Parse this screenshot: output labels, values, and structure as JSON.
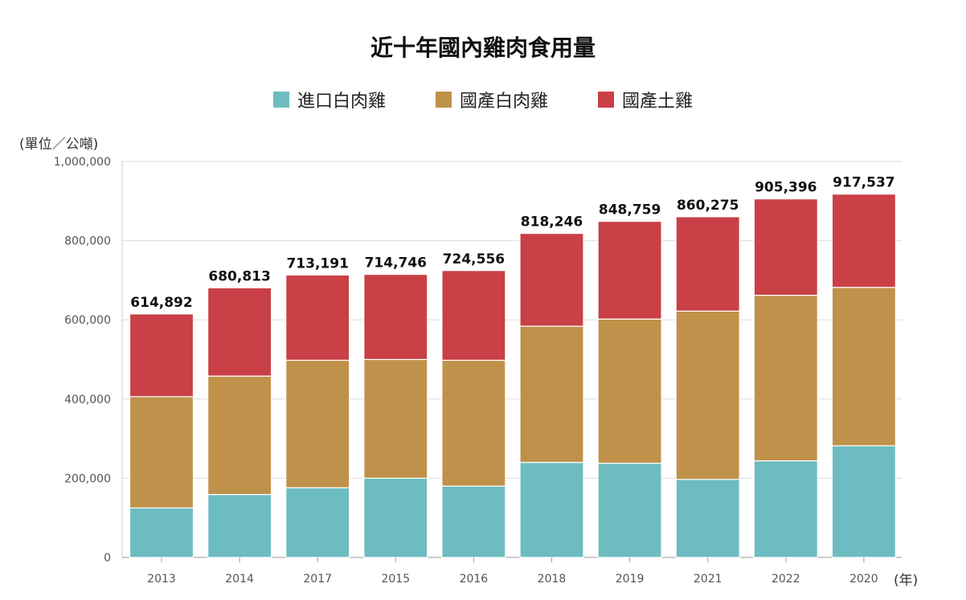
{
  "chart_data": {
    "type": "bar",
    "stacked": true,
    "title": "近十年國內雞肉食用量",
    "ylabel": "(單位／公噸)",
    "xlabel": "(年)",
    "ylim": [
      0,
      1000000
    ],
    "yticks": [
      "0",
      "200,000",
      "400,000",
      "600,000",
      "800,000",
      "1,000,000"
    ],
    "ytick_values": [
      0,
      200000,
      400000,
      600000,
      800000,
      1000000
    ],
    "categories": [
      "2013",
      "2014",
      "2017",
      "2015",
      "2016",
      "2018",
      "2019",
      "2021",
      "2022",
      "2020"
    ],
    "series": [
      {
        "name": "進口白肉雞",
        "color": "#6dbcc1",
        "values": [
          125000,
          159000,
          176000,
          200000,
          180000,
          240000,
          238000,
          197000,
          244000,
          282000
        ]
      },
      {
        "name": "國產白肉雞",
        "color": "#c0914a",
        "values": [
          281000,
          299000,
          322000,
          300000,
          318000,
          344000,
          364000,
          425000,
          418000,
          400000
        ]
      },
      {
        "name": "國產土雞",
        "color": "#c94046",
        "values": [
          208892,
          222813,
          215191,
          214746,
          226556,
          234246,
          246759,
          238275,
          243396,
          235537
        ]
      }
    ],
    "totals": [
      "614,892",
      "680,813",
      "713,191",
      "714,746",
      "724,556",
      "818,246",
      "848,759",
      "860,275",
      "905,396",
      "917,537"
    ],
    "totals_values": [
      614892,
      680813,
      713191,
      714746,
      724556,
      818246,
      848759,
      860275,
      905396,
      917537
    ],
    "legend_position": "top-center",
    "grid": true
  }
}
